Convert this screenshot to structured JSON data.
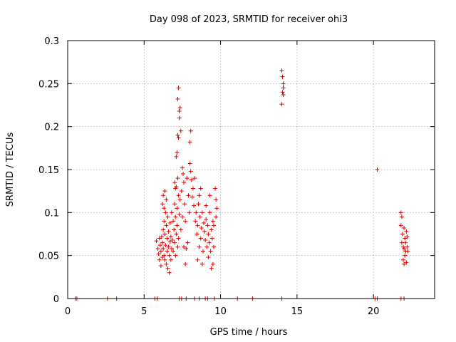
{
  "chart_data": {
    "type": "scatter",
    "title": "Day 098 of 2023, SRMTID for receiver ohi3",
    "xlabel": "GPS time / hours",
    "ylabel": "SRMTID / TECUs",
    "xlim": [
      0,
      24
    ],
    "ylim": [
      0,
      0.3
    ],
    "xticks": [
      0,
      5,
      10,
      15,
      20
    ],
    "yticks": [
      0,
      0.05,
      0.1,
      0.15,
      0.2,
      0.25,
      0.3
    ],
    "xtick_labels": [
      "0",
      "5",
      "10",
      "15",
      "20"
    ],
    "ytick_labels": [
      "0",
      "0.05",
      "0.1",
      "0.15",
      "0.2",
      "0.25",
      "0.3"
    ],
    "grid": true,
    "legend": "none",
    "marker": "+",
    "color": "#e00000",
    "series": [
      {
        "name": "SRMTID",
        "points": [
          [
            0.5,
            0
          ],
          [
            0.6,
            0
          ],
          [
            2.6,
            0
          ],
          [
            3.2,
            0
          ],
          [
            5.7,
            0
          ],
          [
            5.85,
            0
          ],
          [
            7.3,
            0
          ],
          [
            7.45,
            0
          ],
          [
            7.75,
            0
          ],
          [
            8.3,
            0
          ],
          [
            8.6,
            0
          ],
          [
            9.0,
            0
          ],
          [
            9.15,
            0
          ],
          [
            9.6,
            0
          ],
          [
            11.1,
            0
          ],
          [
            12.1,
            0
          ],
          [
            14.0,
            0
          ],
          [
            20.1,
            0
          ],
          [
            20.25,
            0
          ],
          [
            21.8,
            0
          ],
          [
            22.0,
            0
          ],
          [
            5.8,
            0.067
          ],
          [
            5.9,
            0.058
          ],
          [
            5.95,
            0.052
          ],
          [
            6.0,
            0.045
          ],
          [
            6.0,
            0.07
          ],
          [
            6.05,
            0.062
          ],
          [
            6.1,
            0.055
          ],
          [
            6.1,
            0.038
          ],
          [
            6.15,
            0.072
          ],
          [
            6.2,
            0.048
          ],
          [
            6.2,
            0.065
          ],
          [
            6.25,
            0.08
          ],
          [
            6.25,
            0.058
          ],
          [
            6.3,
            0.09
          ],
          [
            6.3,
            0.05
          ],
          [
            6.35,
            0.075
          ],
          [
            6.35,
            0.045
          ],
          [
            6.4,
            0.1
          ],
          [
            6.4,
            0.062
          ],
          [
            6.45,
            0.085
          ],
          [
            6.45,
            0.04
          ],
          [
            6.5,
            0.07
          ],
          [
            6.5,
            0.055
          ],
          [
            6.55,
            0.095
          ],
          [
            6.55,
            0.035
          ],
          [
            6.6,
            0.078
          ],
          [
            6.6,
            0.06
          ],
          [
            6.65,
            0.05
          ],
          [
            6.65,
            0.03
          ],
          [
            6.7,
            0.088
          ],
          [
            6.7,
            0.066
          ],
          [
            6.75,
            0.045
          ],
          [
            6.75,
            0.072
          ],
          [
            6.8,
            0.1
          ],
          [
            6.8,
            0.058
          ],
          [
            6.2,
            0.11
          ],
          [
            6.25,
            0.12
          ],
          [
            6.3,
            0.105
          ],
          [
            6.35,
            0.125
          ],
          [
            6.45,
            0.115
          ],
          [
            6.85,
            0.068
          ],
          [
            6.9,
            0.09
          ],
          [
            6.9,
            0.055
          ],
          [
            6.95,
            0.08
          ],
          [
            7.0,
            0.11
          ],
          [
            7.0,
            0.065
          ],
          [
            7.05,
            0.095
          ],
          [
            7.05,
            0.05
          ],
          [
            7.1,
            0.13
          ],
          [
            7.1,
            0.075
          ],
          [
            7.15,
            0.105
          ],
          [
            7.15,
            0.085
          ],
          [
            7.2,
            0.14
          ],
          [
            7.2,
            0.06
          ],
          [
            7.25,
            0.12
          ],
          [
            7.25,
            0.07
          ],
          [
            7.3,
            0.098
          ],
          [
            7.35,
            0.115
          ],
          [
            7.4,
            0.08
          ],
          [
            7.45,
            0.125
          ],
          [
            7.5,
            0.095
          ],
          [
            7.0,
            0.135
          ],
          [
            7.05,
            0.128
          ],
          [
            7.1,
            0.165
          ],
          [
            7.15,
            0.17
          ],
          [
            7.2,
            0.19
          ],
          [
            7.2,
            0.232
          ],
          [
            7.25,
            0.187
          ],
          [
            7.25,
            0.245
          ],
          [
            7.3,
            0.218
          ],
          [
            7.3,
            0.21
          ],
          [
            7.35,
            0.222
          ],
          [
            7.4,
            0.195
          ],
          [
            7.5,
            0.152
          ],
          [
            7.55,
            0.145
          ],
          [
            7.6,
            0.135
          ],
          [
            7.6,
            0.06
          ],
          [
            7.65,
            0.11
          ],
          [
            7.7,
            0.04
          ],
          [
            7.7,
            0.09
          ],
          [
            7.75,
            0.058
          ],
          [
            7.8,
            0.14
          ],
          [
            7.85,
            0.065
          ],
          [
            7.9,
            0.12
          ],
          [
            7.95,
            0.1
          ],
          [
            8.0,
            0.157
          ],
          [
            8.0,
            0.182
          ],
          [
            8.05,
            0.195
          ],
          [
            8.05,
            0.148
          ],
          [
            8.1,
            0.138
          ],
          [
            8.15,
            0.118
          ],
          [
            8.2,
            0.128
          ],
          [
            8.25,
            0.108
          ],
          [
            8.3,
            0.14
          ],
          [
            8.35,
            0.09
          ],
          [
            8.4,
            0.1
          ],
          [
            8.45,
            0.075
          ],
          [
            8.5,
            0.085
          ],
          [
            8.55,
            0.11
          ],
          [
            8.6,
            0.06
          ],
          [
            8.65,
            0.095
          ],
          [
            8.7,
            0.07
          ],
          [
            8.75,
            0.082
          ],
          [
            8.8,
            0.1
          ],
          [
            8.85,
            0.055
          ],
          [
            8.9,
            0.088
          ],
          [
            8.95,
            0.078
          ],
          [
            9.0,
            0.068
          ],
          [
            9.05,
            0.092
          ],
          [
            9.1,
            0.06
          ],
          [
            9.15,
            0.085
          ],
          [
            9.2,
            0.075
          ],
          [
            9.25,
            0.065
          ],
          [
            9.3,
            0.1
          ],
          [
            9.35,
            0.055
          ],
          [
            9.4,
            0.08
          ],
          [
            9.45,
            0.07
          ],
          [
            9.5,
            0.09
          ],
          [
            9.55,
            0.06
          ],
          [
            8.5,
            0.045
          ],
          [
            8.8,
            0.04
          ],
          [
            9.2,
            0.048
          ],
          [
            9.4,
            0.035
          ],
          [
            9.5,
            0.04
          ],
          [
            8.6,
            0.12
          ],
          [
            8.7,
            0.128
          ],
          [
            9.05,
            0.108
          ],
          [
            9.3,
            0.12
          ],
          [
            9.65,
            0.128
          ],
          [
            9.7,
            0.115
          ],
          [
            9.75,
            0.105
          ],
          [
            9.7,
            0.095
          ],
          [
            9.55,
            0.085
          ],
          [
            14.0,
            0.265
          ],
          [
            14.05,
            0.258
          ],
          [
            14.1,
            0.25
          ],
          [
            14.1,
            0.245
          ],
          [
            14.05,
            0.24
          ],
          [
            14.1,
            0.237
          ],
          [
            14.0,
            0.226
          ],
          [
            20.25,
            0.15
          ],
          [
            21.8,
            0.1
          ],
          [
            21.85,
            0.095
          ],
          [
            21.8,
            0.085
          ],
          [
            21.9,
            0.075
          ],
          [
            21.85,
            0.065
          ],
          [
            21.95,
            0.06
          ],
          [
            22.0,
            0.082
          ],
          [
            22.0,
            0.058
          ],
          [
            22.05,
            0.07
          ],
          [
            22.05,
            0.05
          ],
          [
            22.1,
            0.065
          ],
          [
            22.1,
            0.055
          ],
          [
            22.15,
            0.078
          ],
          [
            22.15,
            0.042
          ],
          [
            22.2,
            0.06
          ],
          [
            22.2,
            0.072
          ],
          [
            22.25,
            0.055
          ],
          [
            21.95,
            0.045
          ],
          [
            22.0,
            0.04
          ]
        ]
      }
    ]
  }
}
